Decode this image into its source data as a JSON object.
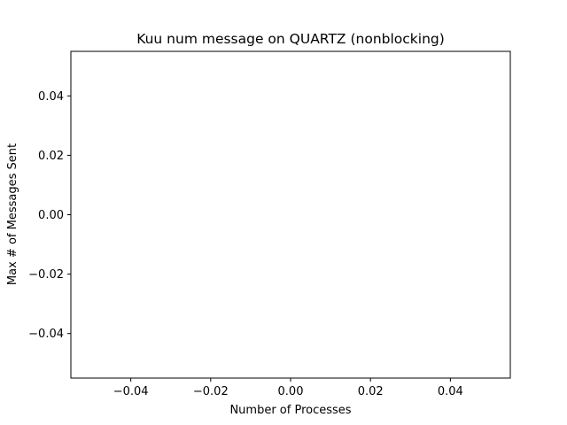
{
  "chart_data": {
    "type": "line",
    "title": "Kuu num message on QUARTZ (nonblocking)",
    "xlabel": "Number of Processes",
    "ylabel": "Max # of Messages Sent",
    "xlim": [
      -0.055,
      0.055
    ],
    "ylim": [
      -0.055,
      0.055
    ],
    "xticks": [
      -0.04,
      -0.02,
      0.0,
      0.02,
      0.04
    ],
    "xtick_labels": [
      "−0.04",
      "−0.02",
      "0.00",
      "0.02",
      "0.04"
    ],
    "yticks": [
      -0.04,
      -0.02,
      0.0,
      0.02,
      0.04
    ],
    "ytick_labels": [
      "−0.04",
      "−0.02",
      "0.00",
      "0.02",
      "0.04"
    ],
    "grid": false,
    "series": []
  }
}
